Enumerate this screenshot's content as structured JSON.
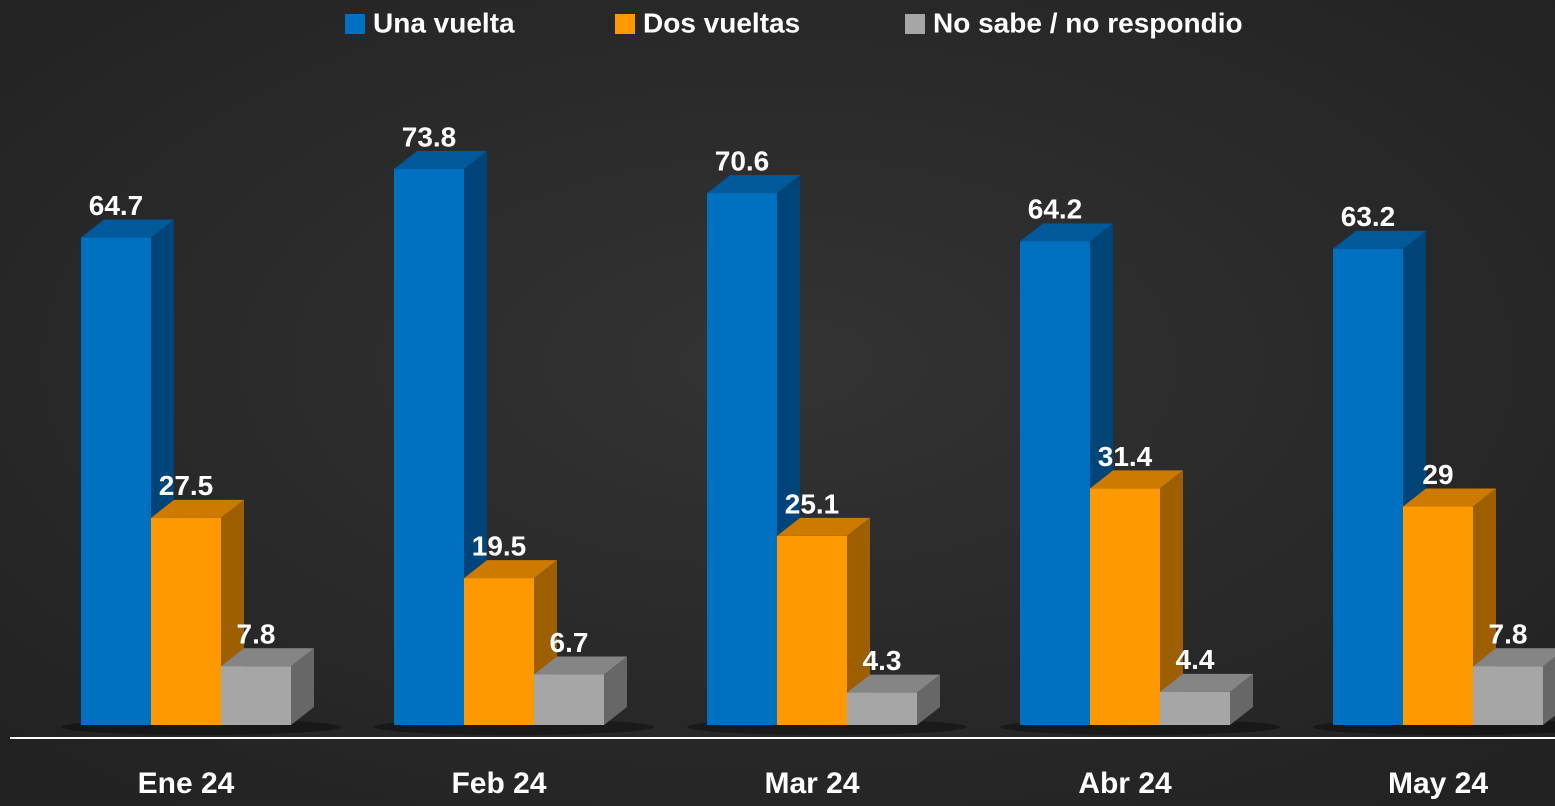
{
  "chart_data": {
    "type": "bar3d",
    "categories": [
      "Ene 24",
      "Feb 24",
      "Mar 24",
      "Abr 24",
      "May 24"
    ],
    "series": [
      {
        "name": "Una vuelta",
        "color": "#0070c0",
        "values": [
          64.7,
          73.8,
          70.6,
          64.2,
          63.2
        ]
      },
      {
        "name": "Dos vueltas",
        "color": "#ff9900",
        "values": [
          27.5,
          19.5,
          25.1,
          31.4,
          29
        ]
      },
      {
        "name": "No sabe / no respondio",
        "color": "#a6a6a6",
        "values": [
          7.8,
          6.7,
          4.3,
          4.4,
          7.8
        ]
      }
    ],
    "legend": "top"
  }
}
